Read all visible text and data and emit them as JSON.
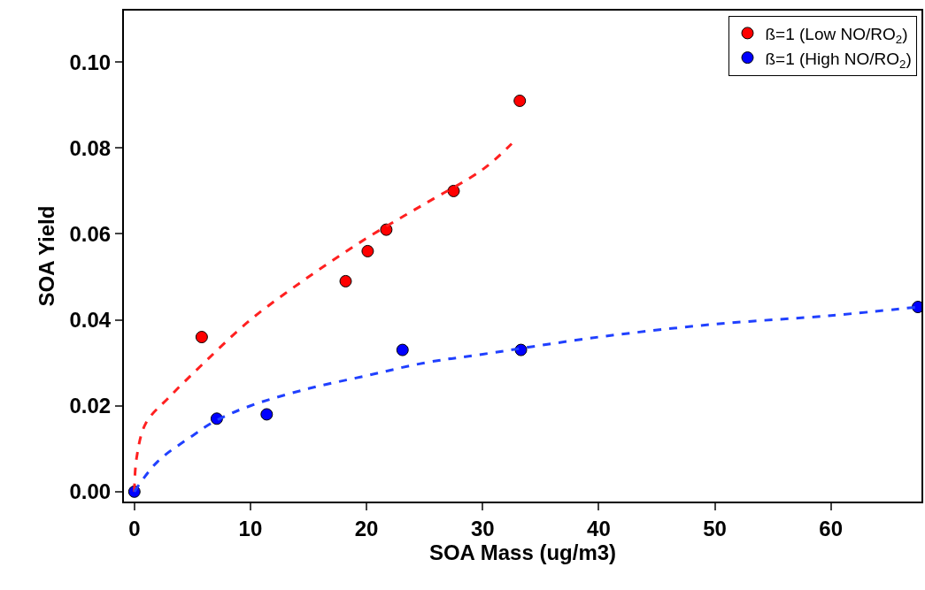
{
  "chart_data": {
    "type": "scatter",
    "xlabel": "SOA Mass (ug/m3)",
    "ylabel": "SOA Yield",
    "xlim": [
      -0.9,
      67.8
    ],
    "ylim": [
      -0.0023,
      0.112
    ],
    "xticks": [
      0,
      10,
      20,
      30,
      40,
      50,
      60
    ],
    "yticks": [
      {
        "value": 0,
        "label": "0.00"
      },
      {
        "value": 0.02,
        "label": "0.02"
      },
      {
        "value": 0.04,
        "label": "0.04"
      },
      {
        "value": 0.06,
        "label": "0.06"
      },
      {
        "value": 0.08,
        "label": "0.08"
      },
      {
        "value": 0.1,
        "label": "0.10"
      }
    ],
    "legend": "top right",
    "marker": "circle",
    "series": [
      {
        "name": "ß=1 (Low NO/RO$_{2}$)",
        "color": "#ff0000",
        "x": [
          5.8,
          18.2,
          20.1,
          21.7,
          27.5,
          33.2
        ],
        "values": [
          0.036,
          0.049,
          0.056,
          0.061,
          0.07,
          0.091
        ]
      },
      {
        "name": "ß=1 (High NO/RO$_{2}$)",
        "color": "#0000ff",
        "x": [
          0,
          7.1,
          11.4,
          23.1,
          33.3,
          67.5
        ],
        "values": [
          0,
          0.017,
          0.018,
          0.033,
          0.033,
          0.043
        ]
      },
      {
        "type": "line",
        "line_style": "dashed",
        "marker": "none",
        "color": "#ff2020",
        "x": [
          0,
          0.2,
          1,
          3,
          6,
          10,
          15,
          20,
          25,
          30,
          32.5
        ],
        "values": [
          0,
          0.008,
          0.016,
          0.022,
          0.03,
          0.04,
          0.05,
          0.059,
          0.067,
          0.075,
          0.081
        ]
      },
      {
        "type": "line",
        "line_style": "dashed",
        "marker": "none",
        "color": "#2040ff",
        "x": [
          0,
          2,
          5,
          7,
          10,
          15,
          20,
          25,
          30,
          40,
          50,
          60,
          67.5
        ],
        "values": [
          0,
          0.007,
          0.013,
          0.0165,
          0.02,
          0.024,
          0.027,
          0.03,
          0.032,
          0.036,
          0.039,
          0.041,
          0.043
        ]
      }
    ]
  }
}
